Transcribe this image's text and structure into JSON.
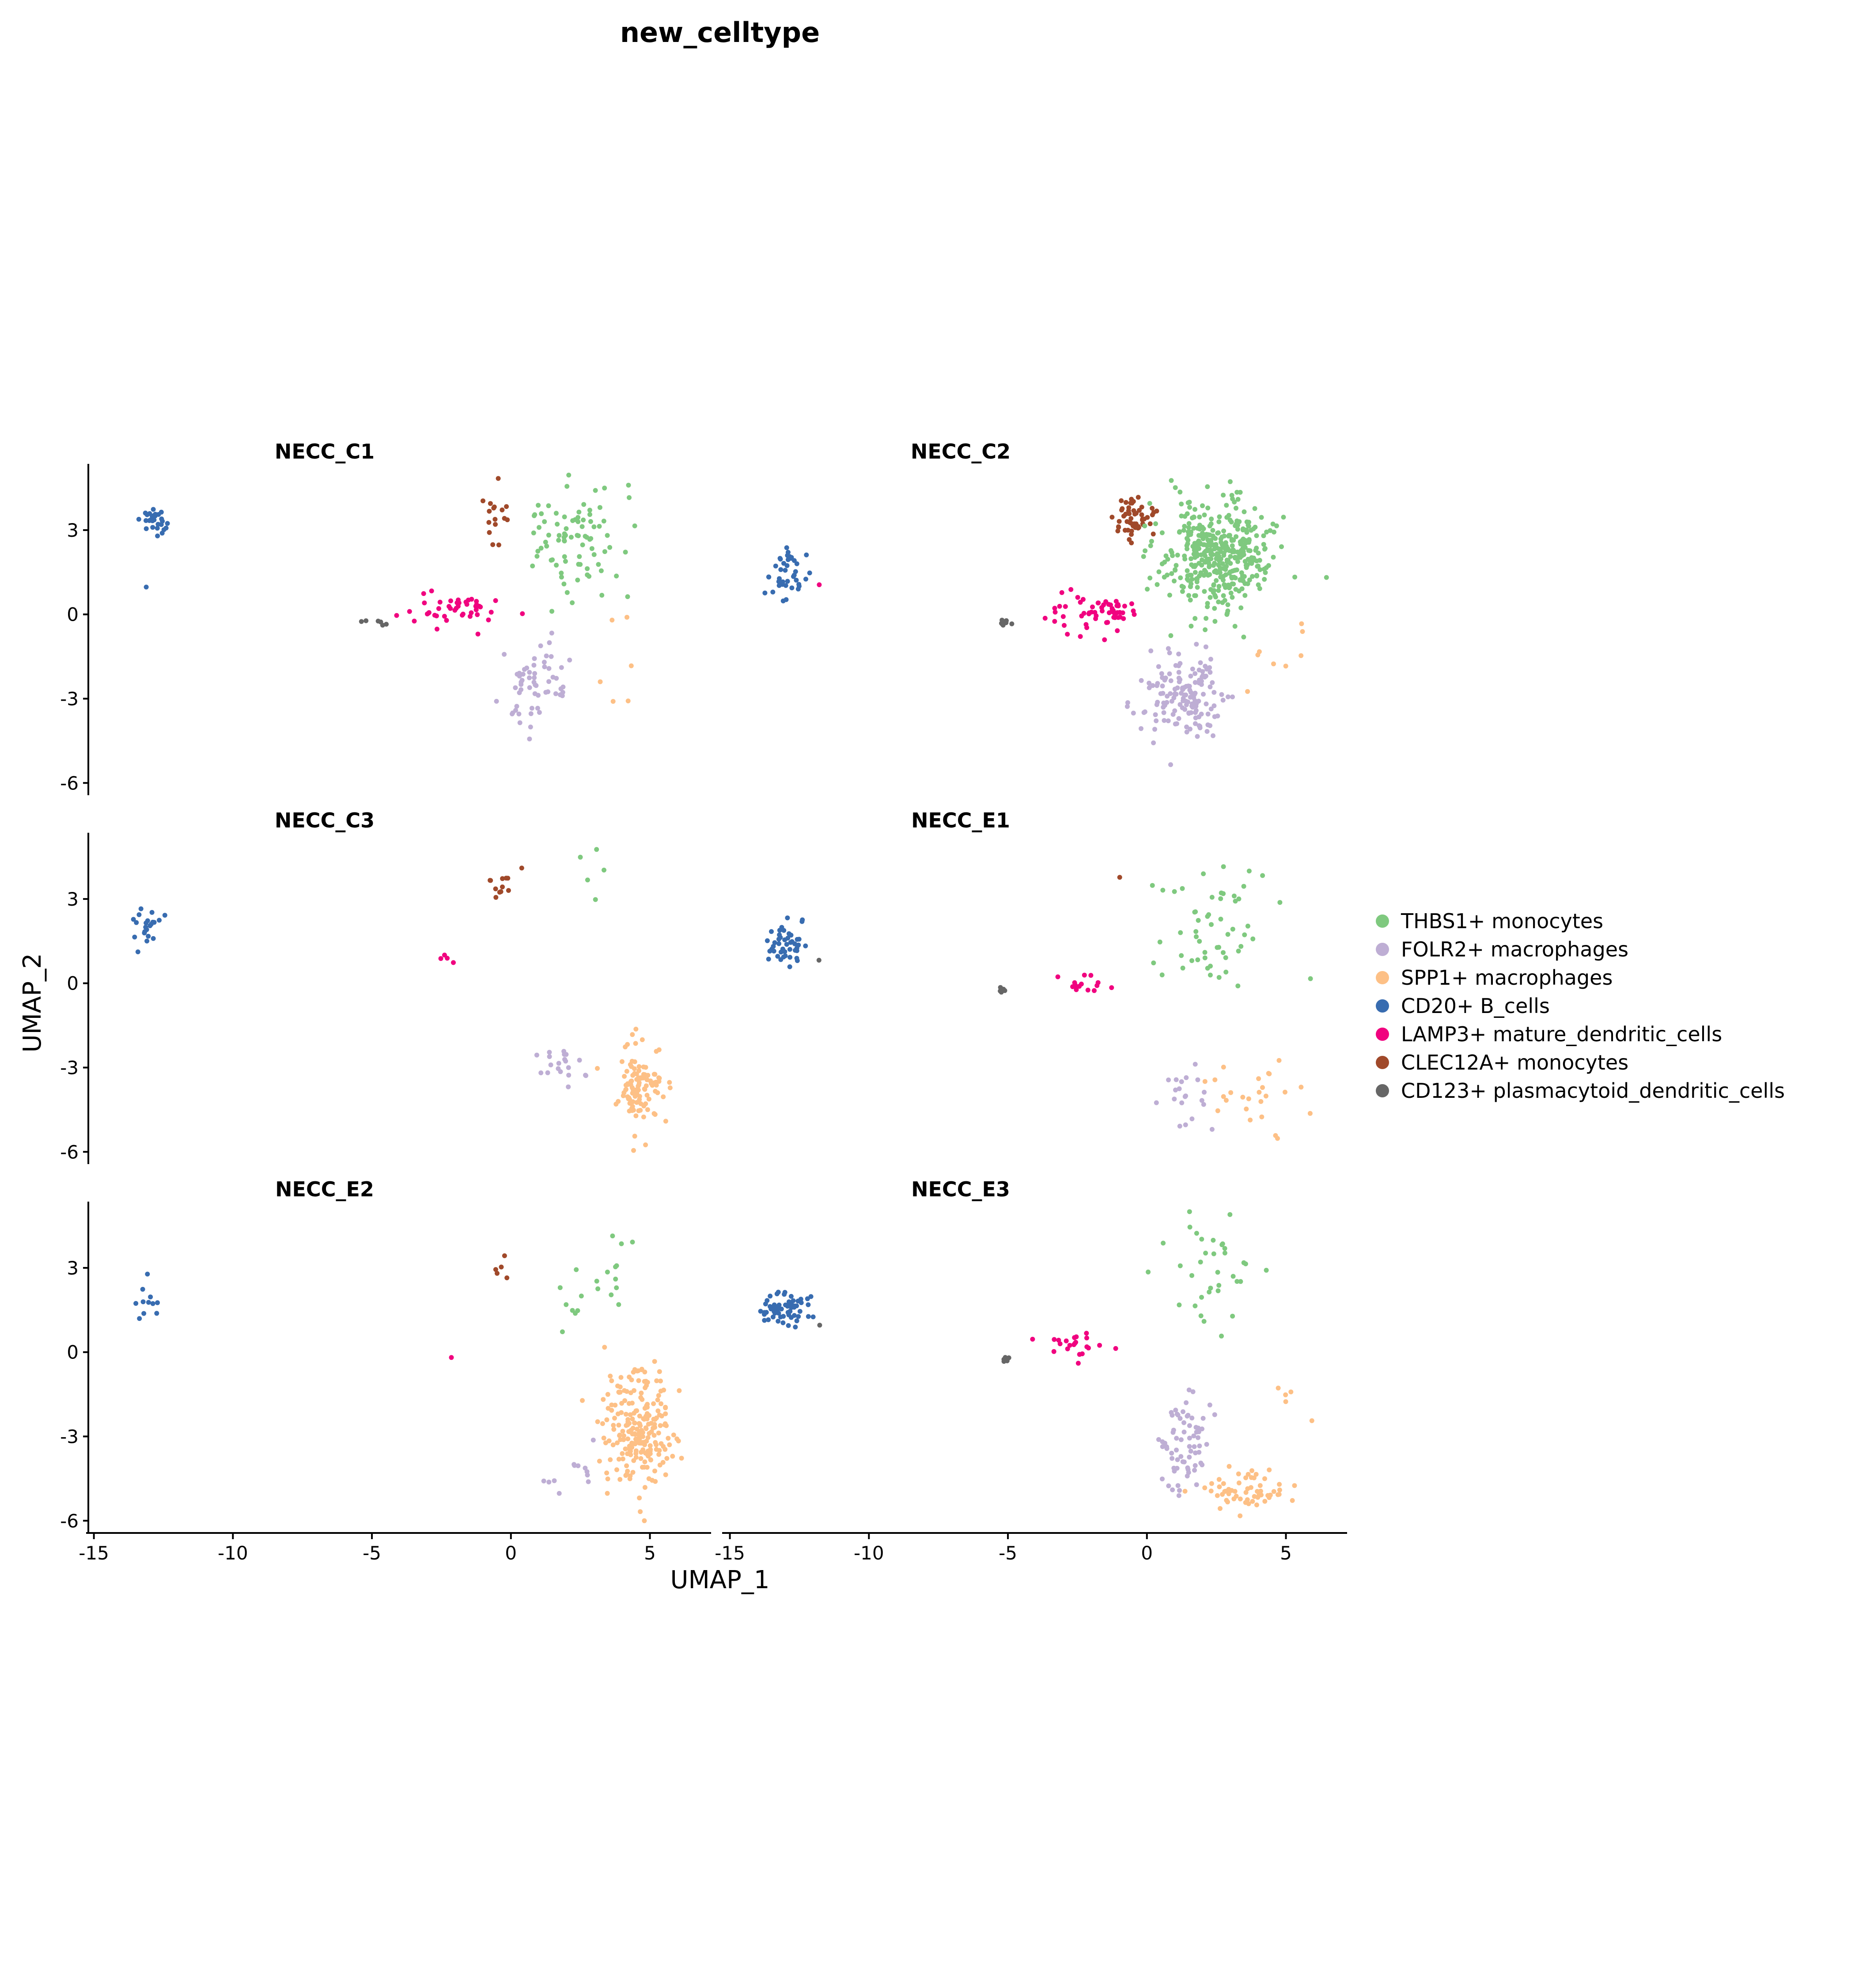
{
  "chart_data": {
    "type": "scatter",
    "title": "new_celltype",
    "xlabel": "UMAP_1",
    "ylabel": "UMAP_2",
    "xlim": [
      -15.2,
      7.2
    ],
    "ylim": [
      -6.2,
      5.2
    ],
    "xticks": [
      -15,
      -10,
      -5,
      0,
      5
    ],
    "xtick_labels": [
      "-15",
      "-10",
      "-5",
      "0",
      "5"
    ],
    "yticks": [
      3,
      0,
      -3,
      -6
    ],
    "ytick_labels": [
      "3",
      "0",
      "-3",
      "-6"
    ],
    "grid": false,
    "legend_position": "right",
    "legend": [
      {
        "key": "THBS1",
        "label": "THBS1+ monocytes",
        "color": "#7FC97F"
      },
      {
        "key": "FOLR2",
        "label": "FOLR2+ macrophages",
        "color": "#BEAED4"
      },
      {
        "key": "SPP1",
        "label": "SPP1+ macrophages",
        "color": "#FDC086"
      },
      {
        "key": "CD20",
        "label": "CD20+ B_cells",
        "color": "#386CB0"
      },
      {
        "key": "LAMP3",
        "label": "LAMP3+ mature_dendritic_cells",
        "color": "#F0027F"
      },
      {
        "key": "CLEC12A",
        "label": "CLEC12A+ monocytes",
        "color": "#A0492A"
      },
      {
        "key": "CD123",
        "label": "CD123+ plasmacytoid_dendritic_cells",
        "color": "#666666"
      }
    ],
    "facets": [
      {
        "name": "NECC_C1",
        "clusters": [
          {
            "type": "CD20",
            "cx": -12.8,
            "cy": 3.3,
            "sx": 0.3,
            "sy": 0.3,
            "n": 28
          },
          {
            "type": "CD20",
            "cx": -13.1,
            "cy": 1.0,
            "sx": 0.05,
            "sy": 0.05,
            "n": 1
          },
          {
            "type": "CD123",
            "cx": -5.0,
            "cy": -0.3,
            "sx": 0.3,
            "sy": 0.08,
            "n": 6
          },
          {
            "type": "LAMP3",
            "cx": -2.0,
            "cy": 0.2,
            "sx": 1.1,
            "sy": 0.45,
            "n": 45
          },
          {
            "type": "CLEC12A",
            "cx": -0.6,
            "cy": 3.5,
            "sx": 0.45,
            "sy": 0.6,
            "n": 16
          },
          {
            "type": "THBS1",
            "cx": 2.4,
            "cy": 2.6,
            "sx": 1.1,
            "sy": 1.3,
            "n": 85
          },
          {
            "type": "FOLR2",
            "cx": 0.7,
            "cy": -2.6,
            "sx": 0.8,
            "sy": 0.85,
            "n": 60
          },
          {
            "type": "SPP1",
            "cx": 4.2,
            "cy": -2.0,
            "sx": 1.0,
            "sy": 1.4,
            "n": 6
          }
        ]
      },
      {
        "name": "NECC_C2",
        "clusters": [
          {
            "type": "CD20",
            "cx": -13.0,
            "cy": 1.5,
            "sx": 0.45,
            "sy": 0.6,
            "n": 40
          },
          {
            "type": "LAMP3",
            "cx": -11.8,
            "cy": 1.0,
            "sx": 0.05,
            "sy": 0.05,
            "n": 1
          },
          {
            "type": "CD123",
            "cx": -5.1,
            "cy": -0.3,
            "sx": 0.15,
            "sy": 0.1,
            "n": 10
          },
          {
            "type": "LAMP3",
            "cx": -1.9,
            "cy": 0.1,
            "sx": 1.0,
            "sy": 0.5,
            "n": 60
          },
          {
            "type": "CLEC12A",
            "cx": -0.5,
            "cy": 3.4,
            "sx": 0.55,
            "sy": 0.6,
            "n": 55
          },
          {
            "type": "THBS1",
            "cx": 2.5,
            "cy": 2.1,
            "sx": 1.3,
            "sy": 1.25,
            "n": 420
          },
          {
            "type": "FOLR2",
            "cx": 1.4,
            "cy": -3.0,
            "sx": 0.9,
            "sy": 1.0,
            "n": 150
          },
          {
            "type": "SPP1",
            "cx": 4.8,
            "cy": -1.5,
            "sx": 0.9,
            "sy": 0.9,
            "n": 8
          }
        ]
      },
      {
        "name": "NECC_C3",
        "clusters": [
          {
            "type": "CD20",
            "cx": -13.2,
            "cy": 1.9,
            "sx": 0.35,
            "sy": 0.45,
            "n": 22
          },
          {
            "type": "CLEC12A",
            "cx": -0.2,
            "cy": 3.6,
            "sx": 0.35,
            "sy": 0.5,
            "n": 12
          },
          {
            "type": "LAMP3",
            "cx": -2.4,
            "cy": 0.9,
            "sx": 0.3,
            "sy": 0.1,
            "n": 4
          },
          {
            "type": "THBS1",
            "cx": 3.0,
            "cy": 3.7,
            "sx": 0.8,
            "sy": 1.0,
            "n": 5
          },
          {
            "type": "FOLR2",
            "cx": 1.8,
            "cy": -2.8,
            "sx": 1.0,
            "sy": 0.55,
            "n": 20
          },
          {
            "type": "SPP1",
            "cx": 4.6,
            "cy": -3.7,
            "sx": 0.55,
            "sy": 0.9,
            "n": 110
          }
        ]
      },
      {
        "name": "NECC_E1",
        "clusters": [
          {
            "type": "CD20",
            "cx": -13.0,
            "cy": 1.4,
            "sx": 0.4,
            "sy": 0.5,
            "n": 45
          },
          {
            "type": "CD123",
            "cx": -11.8,
            "cy": 0.8,
            "sx": 0.05,
            "sy": 0.05,
            "n": 1
          },
          {
            "type": "CD123",
            "cx": -5.2,
            "cy": -0.3,
            "sx": 0.1,
            "sy": 0.15,
            "n": 5
          },
          {
            "type": "LAMP3",
            "cx": -2.6,
            "cy": 0.0,
            "sx": 0.75,
            "sy": 0.3,
            "n": 15
          },
          {
            "type": "CLEC12A",
            "cx": -1.0,
            "cy": 3.8,
            "sx": 0.05,
            "sy": 0.05,
            "n": 1
          },
          {
            "type": "THBS1",
            "cx": 2.5,
            "cy": 1.8,
            "sx": 1.3,
            "sy": 1.7,
            "n": 55
          },
          {
            "type": "FOLR2",
            "cx": 1.6,
            "cy": -3.6,
            "sx": 0.6,
            "sy": 1.0,
            "n": 20
          },
          {
            "type": "SPP1",
            "cx": 3.8,
            "cy": -3.8,
            "sx": 1.3,
            "sy": 1.1,
            "n": 25
          }
        ]
      },
      {
        "name": "NECC_E2",
        "clusters": [
          {
            "type": "CD20",
            "cx": -13.2,
            "cy": 1.5,
            "sx": 0.5,
            "sy": 0.6,
            "n": 11
          },
          {
            "type": "CLEC12A",
            "cx": -0.4,
            "cy": 2.9,
            "sx": 0.35,
            "sy": 0.4,
            "n": 5
          },
          {
            "type": "LAMP3",
            "cx": -2.1,
            "cy": -0.3,
            "sx": 0.05,
            "sy": 0.05,
            "n": 1
          },
          {
            "type": "THBS1",
            "cx": 2.6,
            "cy": 2.5,
            "sx": 1.3,
            "sy": 1.2,
            "n": 20
          },
          {
            "type": "FOLR2",
            "cx": 2.0,
            "cy": -4.2,
            "sx": 0.8,
            "sy": 0.5,
            "n": 12
          },
          {
            "type": "SPP1",
            "cx": 4.6,
            "cy": -2.8,
            "sx": 0.9,
            "sy": 1.5,
            "n": 230
          }
        ]
      },
      {
        "name": "NECC_E3",
        "clusters": [
          {
            "type": "CD20",
            "cx": -13.0,
            "cy": 1.6,
            "sx": 0.55,
            "sy": 0.45,
            "n": 65
          },
          {
            "type": "CD123",
            "cx": -11.8,
            "cy": 0.9,
            "sx": 0.05,
            "sy": 0.05,
            "n": 1
          },
          {
            "type": "CD123",
            "cx": -5.1,
            "cy": -0.3,
            "sx": 0.12,
            "sy": 0.1,
            "n": 7
          },
          {
            "type": "LAMP3",
            "cx": -2.5,
            "cy": 0.2,
            "sx": 0.8,
            "sy": 0.35,
            "n": 22
          },
          {
            "type": "THBS1",
            "cx": 2.5,
            "cy": 2.6,
            "sx": 1.2,
            "sy": 1.4,
            "n": 35
          },
          {
            "type": "FOLR2",
            "cx": 1.4,
            "cy": -3.3,
            "sx": 0.6,
            "sy": 1.0,
            "n": 70
          },
          {
            "type": "SPP1",
            "cx": 3.8,
            "cy": -4.9,
            "sx": 1.0,
            "sy": 0.5,
            "n": 60
          },
          {
            "type": "SPP1",
            "cx": 5.3,
            "cy": -1.3,
            "sx": 0.5,
            "sy": 0.8,
            "n": 5
          }
        ]
      }
    ]
  }
}
